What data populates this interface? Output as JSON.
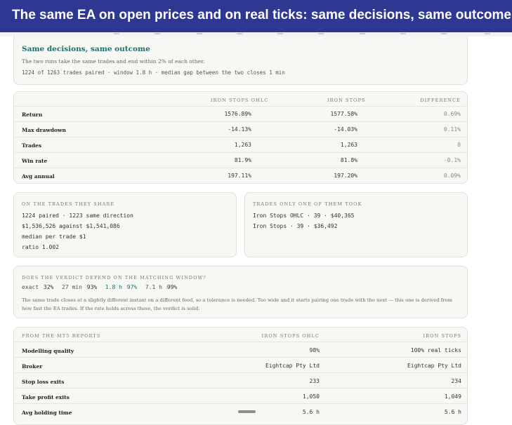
{
  "window": {
    "title": "The same EA on open prices and on real ticks: same decisions, same outcome"
  },
  "header": {
    "heading": "Same decisions, same outcome",
    "description": "The two runs take the same trades and end within 2% of each other.",
    "meta": "1224 of 1263 trades paired · window 1.8 h · median gap between the two closes 1 min"
  },
  "comparison": {
    "columns": [
      "IRON STOPS OHLC",
      "IRON STOPS",
      "DIFFERENCE"
    ],
    "rows": [
      {
        "label": "Return",
        "a": "1576.89%",
        "b": "1577.58%",
        "diff": "0.69%"
      },
      {
        "label": "Max drawdown",
        "a": "-14.13%",
        "b": "-14.03%",
        "diff": "0.11%"
      },
      {
        "label": "Trades",
        "a": "1,263",
        "b": "1,263",
        "diff": "0"
      },
      {
        "label": "Win rate",
        "a": "81.9%",
        "b": "81.8%",
        "diff": "-0.1%"
      },
      {
        "label": "Avg annual",
        "a": "197.11%",
        "b": "197.20%",
        "diff": "0.09%"
      }
    ]
  },
  "shared": {
    "title": "ON THE TRADES THEY SHARE",
    "lines": [
      "1224 paired · 1223 same direction",
      "$1,536,526 against $1,541,086",
      "median per trade $1",
      "ratio 1.002"
    ]
  },
  "only_one": {
    "title": "TRADES ONLY ONE OF THEM TOOK",
    "lines": [
      "Iron Stops OHLC · 39 · $40,365",
      "Iron Stops · 39 · $36,492"
    ]
  },
  "window_check": {
    "title": "DOES THE VERDICT DEPEND ON THE MATCHING WINDOW?",
    "values": [
      {
        "window": "exact",
        "rate": "32%"
      },
      {
        "window": "27 min",
        "rate": "93%"
      },
      {
        "window": "1.8 h",
        "rate": "97%"
      },
      {
        "window": "7.1 h",
        "rate": "99%"
      }
    ],
    "note": "The same trade closes at a slightly different instant on a different feed, so a tolerance is needed. Too wide and it starts pairing one trade with the next — this one is derived from how fast the EA trades. If the rate holds across these, the verdict is solid."
  },
  "mt5": {
    "columns": [
      "FROM THE MT5 REPORTS",
      "IRON STOPS OHLC",
      "IRON STOPS"
    ],
    "rows": [
      {
        "label": "Modelling quality",
        "a": "98%",
        "b": "100% real ticks"
      },
      {
        "label": "Broker",
        "a": "Eightcap Pty Ltd",
        "b": "Eightcap Pty Ltd"
      },
      {
        "label": "Stop loss exits",
        "a": "233",
        "b": "234"
      },
      {
        "label": "Take profit exits",
        "a": "1,050",
        "b": "1,049"
      },
      {
        "label": "Avg holding time",
        "a": "5.6 h",
        "b": "5.6 h"
      }
    ]
  },
  "colors": {
    "titlebar": "#2e3892",
    "accent": "#1f6e6c",
    "card": "#f7f7f3"
  }
}
